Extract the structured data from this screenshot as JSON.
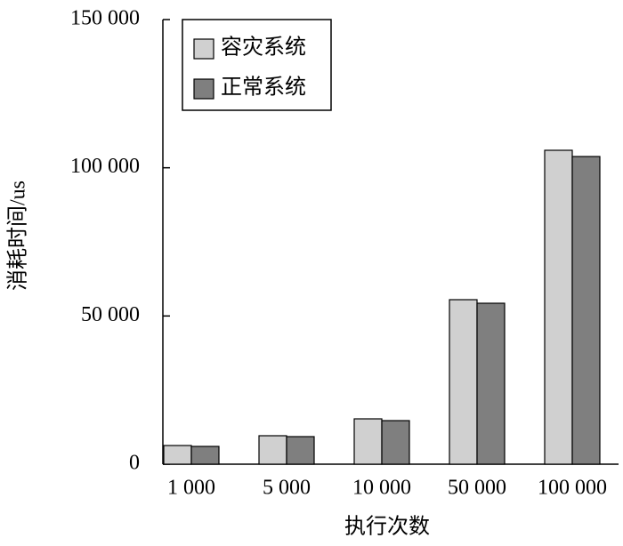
{
  "chart_data": {
    "type": "bar",
    "x_label": "执行次数",
    "y_label": "消耗时间/us",
    "categories": [
      "1 000",
      "5 000",
      "10 000",
      "50 000",
      "100 000"
    ],
    "series": [
      {
        "name": "容灾系统",
        "color": "#d0d0d0",
        "values": [
          6300,
          9600,
          15300,
          55500,
          105900
        ]
      },
      {
        "name": "正常系统",
        "color": "#7f7f7f",
        "values": [
          6000,
          9300,
          14700,
          54300,
          103800
        ]
      }
    ],
    "ylim": [
      0,
      150000
    ],
    "yticks": [
      0,
      {
        "value": 50000,
        "label": "50 000"
      },
      {
        "value": 100000,
        "label": "100 000"
      },
      {
        "value": 150000,
        "label": "150 000"
      }
    ],
    "grid": false,
    "legend": "upper-left"
  }
}
